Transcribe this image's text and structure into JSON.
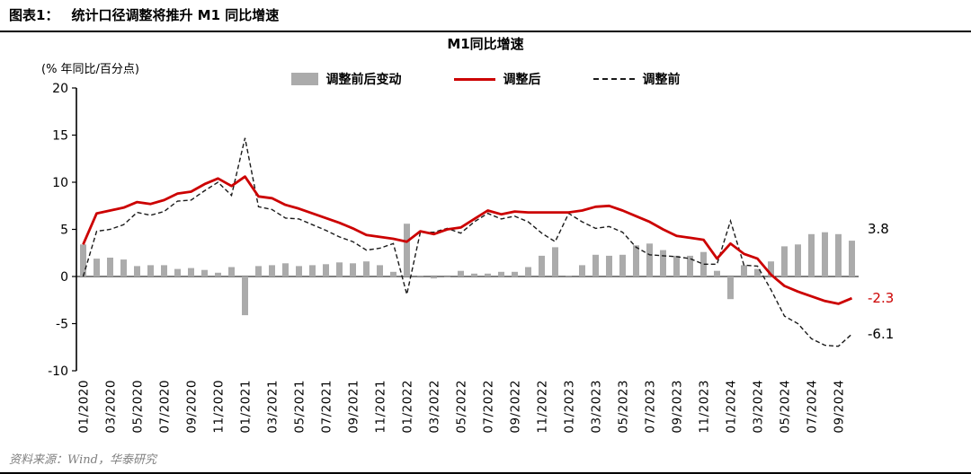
{
  "header": {
    "prefix": "图表1：",
    "title": "统计口径调整将推升 M1 同比增速"
  },
  "footer": {
    "source": "资料来源：Wind，华泰研究"
  },
  "chart_data": {
    "type": "bar+line",
    "title": "M1同比增速",
    "unit_label": "(% 年同比/百分点)",
    "ylim": [
      -10,
      20
    ],
    "yticks": [
      20,
      15,
      10,
      5,
      0,
      -5,
      -10
    ],
    "grid": false,
    "legend_position": "top",
    "x_tick_every": 2,
    "x": [
      "01/2020",
      "02/2020",
      "03/2020",
      "04/2020",
      "05/2020",
      "06/2020",
      "07/2020",
      "08/2020",
      "09/2020",
      "10/2020",
      "11/2020",
      "12/2020",
      "01/2021",
      "02/2021",
      "03/2021",
      "04/2021",
      "05/2021",
      "06/2021",
      "07/2021",
      "08/2021",
      "09/2021",
      "10/2021",
      "11/2021",
      "12/2021",
      "01/2022",
      "02/2022",
      "03/2022",
      "04/2022",
      "05/2022",
      "06/2022",
      "07/2022",
      "08/2022",
      "09/2022",
      "10/2022",
      "11/2022",
      "12/2022",
      "01/2023",
      "02/2023",
      "03/2023",
      "04/2023",
      "05/2023",
      "06/2023",
      "07/2023",
      "08/2023",
      "09/2023",
      "10/2023",
      "11/2023",
      "12/2023",
      "01/2024",
      "02/2024",
      "03/2024",
      "04/2024",
      "05/2024",
      "06/2024",
      "07/2024",
      "08/2024",
      "09/2024",
      "10/2024"
    ],
    "series": [
      {
        "name": "调整前后变动",
        "type": "bar",
        "color": "#ababab",
        "values": [
          3.4,
          1.9,
          2.0,
          1.8,
          1.1,
          1.2,
          1.2,
          0.8,
          0.9,
          0.7,
          0.4,
          1.0,
          -4.1,
          1.1,
          1.2,
          1.4,
          1.1,
          1.2,
          1.3,
          1.5,
          1.4,
          1.6,
          1.2,
          0.5,
          5.6,
          0.1,
          -0.2,
          -0.1,
          0.6,
          0.3,
          0.3,
          0.5,
          0.5,
          1.0,
          2.2,
          3.1,
          0.1,
          1.2,
          2.3,
          2.2,
          2.3,
          3.3,
          3.5,
          2.8,
          2.2,
          2.2,
          2.6,
          0.6,
          -2.4,
          1.2,
          0.8,
          1.6,
          3.2,
          3.4,
          4.5,
          4.7,
          4.5,
          3.8
        ]
      },
      {
        "name": "调整后",
        "type": "line",
        "color": "#cc0000",
        "values": [
          3.4,
          6.7,
          7.0,
          7.3,
          7.9,
          7.7,
          8.1,
          8.8,
          9.0,
          9.8,
          10.4,
          9.6,
          10.6,
          8.5,
          8.3,
          7.6,
          7.2,
          6.7,
          6.2,
          5.7,
          5.1,
          4.4,
          4.2,
          4.0,
          3.7,
          4.8,
          4.5,
          5.0,
          5.2,
          6.1,
          7.0,
          6.6,
          6.9,
          6.8,
          6.8,
          6.8,
          6.8,
          7.0,
          7.4,
          7.5,
          7.0,
          6.4,
          5.8,
          5.0,
          4.3,
          4.1,
          3.9,
          1.9,
          3.5,
          2.4,
          1.9,
          0.2,
          -1.0,
          -1.6,
          -2.1,
          -2.6,
          -2.9,
          -2.3
        ]
      },
      {
        "name": "调整前",
        "type": "line-dashed",
        "color": "#1a1a1a",
        "values": [
          0.0,
          4.8,
          5.0,
          5.5,
          6.8,
          6.5,
          6.9,
          8.0,
          8.1,
          9.1,
          10.0,
          8.6,
          14.7,
          7.4,
          7.1,
          6.2,
          6.1,
          5.5,
          4.9,
          4.2,
          3.7,
          2.8,
          3.0,
          3.5,
          -1.9,
          4.7,
          4.7,
          5.1,
          4.6,
          5.8,
          6.7,
          6.1,
          6.4,
          5.8,
          4.6,
          3.7,
          6.7,
          5.8,
          5.1,
          5.3,
          4.7,
          3.1,
          2.3,
          2.2,
          2.1,
          1.9,
          1.3,
          1.3,
          5.9,
          1.2,
          1.1,
          -1.4,
          -4.2,
          -5.0,
          -6.6,
          -7.3,
          -7.4,
          -6.1
        ]
      }
    ],
    "end_labels": [
      {
        "series": "调整前后变动",
        "text": "3.8",
        "color": "#000000"
      },
      {
        "series": "调整后",
        "text": "-2.3",
        "color": "#cc0000"
      },
      {
        "series": "调整前",
        "text": "-6.1",
        "color": "#000000"
      }
    ]
  }
}
